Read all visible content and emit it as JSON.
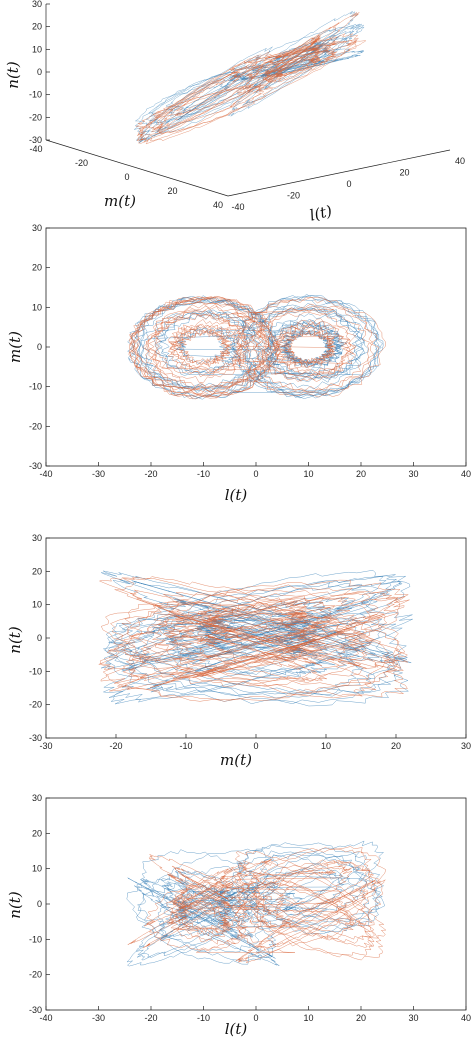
{
  "colors": {
    "blue": "#3b82b8",
    "orange": "#d9663a",
    "axis": "#222222"
  },
  "chart_data": [
    {
      "type": "line",
      "view": "3d",
      "xlabel": "l(t)",
      "ylabel": "m(t)",
      "zlabel": "n(t)",
      "xlim": [
        -40,
        40
      ],
      "ylim": [
        -40,
        40
      ],
      "zlim": [
        -30,
        30
      ],
      "xticks": [
        "-40",
        "-20",
        "0",
        "20",
        "40"
      ],
      "yticks": [
        "-40",
        "-20",
        "0",
        "20",
        "40"
      ],
      "zticks": [
        "30",
        "20",
        "10",
        "0",
        "-10",
        "-20",
        "-30"
      ],
      "series": [
        {
          "color": "blue"
        },
        {
          "color": "orange"
        }
      ]
    },
    {
      "type": "line",
      "xlabel": "l(t)",
      "ylabel": "m(t)",
      "xlim": [
        -40,
        40
      ],
      "ylim": [
        -30,
        30
      ],
      "xticks": [
        "-40",
        "-30",
        "-20",
        "-10",
        "0",
        "10",
        "20",
        "30",
        "40"
      ],
      "yticks": [
        "30",
        "20",
        "10",
        "0",
        "-10",
        "-20",
        "-30"
      ],
      "series": [
        {
          "color": "blue"
        },
        {
          "color": "orange"
        }
      ]
    },
    {
      "type": "line",
      "xlabel": "m(t)",
      "ylabel": "n(t)",
      "xlim": [
        -30,
        30
      ],
      "ylim": [
        -30,
        30
      ],
      "xticks": [
        "-30",
        "-20",
        "-10",
        "0",
        "10",
        "20",
        "30"
      ],
      "yticks": [
        "30",
        "20",
        "10",
        "0",
        "-10",
        "-20",
        "-30"
      ],
      "series": [
        {
          "color": "blue"
        },
        {
          "color": "orange"
        }
      ]
    },
    {
      "type": "line",
      "xlabel": "l(t)",
      "ylabel": "n(t)",
      "xlim": [
        -40,
        40
      ],
      "ylim": [
        -30,
        30
      ],
      "xticks": [
        "-40",
        "-30",
        "-20",
        "-10",
        "0",
        "10",
        "20",
        "30",
        "40"
      ],
      "yticks": [
        "30",
        "20",
        "10",
        "0",
        "-10",
        "-20",
        "-30"
      ],
      "series": [
        {
          "color": "blue"
        },
        {
          "color": "orange"
        }
      ]
    }
  ]
}
